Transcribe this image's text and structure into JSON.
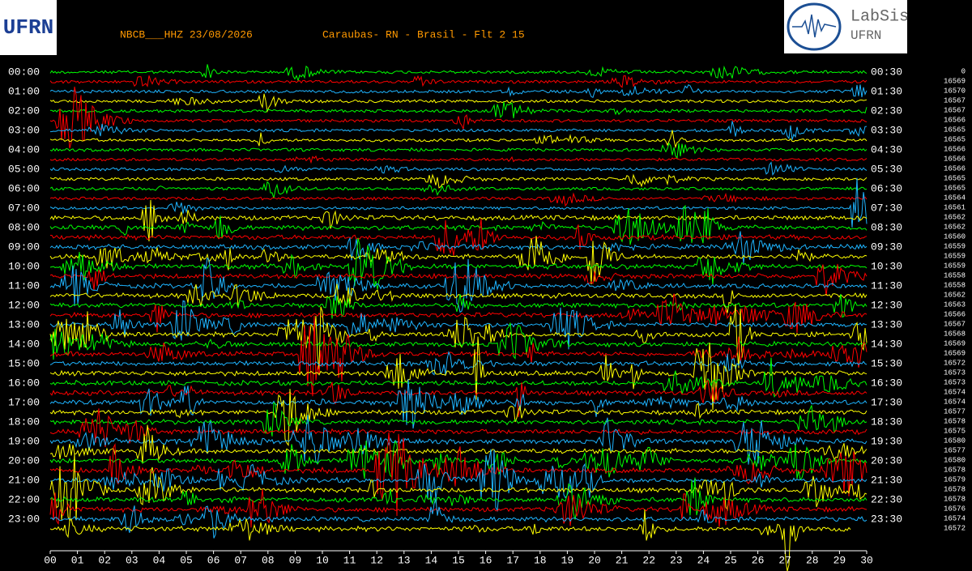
{
  "header": {
    "station": "NBCB___HHZ 23/08/2026",
    "location": "Caraubas- RN - Brasil - Flt 2 15"
  },
  "logos": {
    "left": "UFRN",
    "right_top": "LabSis",
    "right_bottom": "UFRN"
  },
  "left_labels": [
    "00:00",
    "01:00",
    "02:00",
    "03:00",
    "04:00",
    "05:00",
    "06:00",
    "07:00",
    "08:00",
    "09:00",
    "10:00",
    "11:00",
    "12:00",
    "13:00",
    "14:00",
    "15:00",
    "16:00",
    "17:00",
    "18:00",
    "19:00",
    "20:00",
    "21:00",
    "22:00",
    "23:00"
  ],
  "right_labels": [
    "00:30",
    "01:30",
    "02:30",
    "03:30",
    "04:30",
    "05:30",
    "06:30",
    "07:30",
    "08:30",
    "09:30",
    "10:30",
    "11:30",
    "12:30",
    "13:30",
    "14:30",
    "15:30",
    "16:30",
    "17:30",
    "18:30",
    "19:30",
    "20:30",
    "21:30",
    "22:30",
    "23:30"
  ],
  "counts": [
    "0",
    "16569",
    "16570",
    "16567",
    "16567",
    "16566",
    "16565",
    "16565",
    "16566",
    "16566",
    "16566",
    "16565",
    "16565",
    "16564",
    "16561",
    "16562",
    "16562",
    "16560",
    "16559",
    "16559",
    "16559",
    "16558",
    "16558",
    "16562",
    "16563",
    "16566",
    "16567",
    "16568",
    "16569",
    "16569",
    "16572",
    "16573",
    "16573",
    "16574",
    "16574",
    "16577",
    "16578",
    "16575",
    "16580",
    "16577",
    "16580",
    "16578",
    "16579",
    "16578",
    "16578",
    "16576",
    "16574",
    "16572"
  ],
  "minute_labels": [
    "00",
    "01",
    "02",
    "03",
    "04",
    "05",
    "06",
    "07",
    "08",
    "09",
    "10",
    "11",
    "12",
    "13",
    "14",
    "15",
    "16",
    "17",
    "18",
    "19",
    "20",
    "21",
    "22",
    "23",
    "24",
    "25",
    "26",
    "27",
    "28",
    "29",
    "30"
  ]
}
